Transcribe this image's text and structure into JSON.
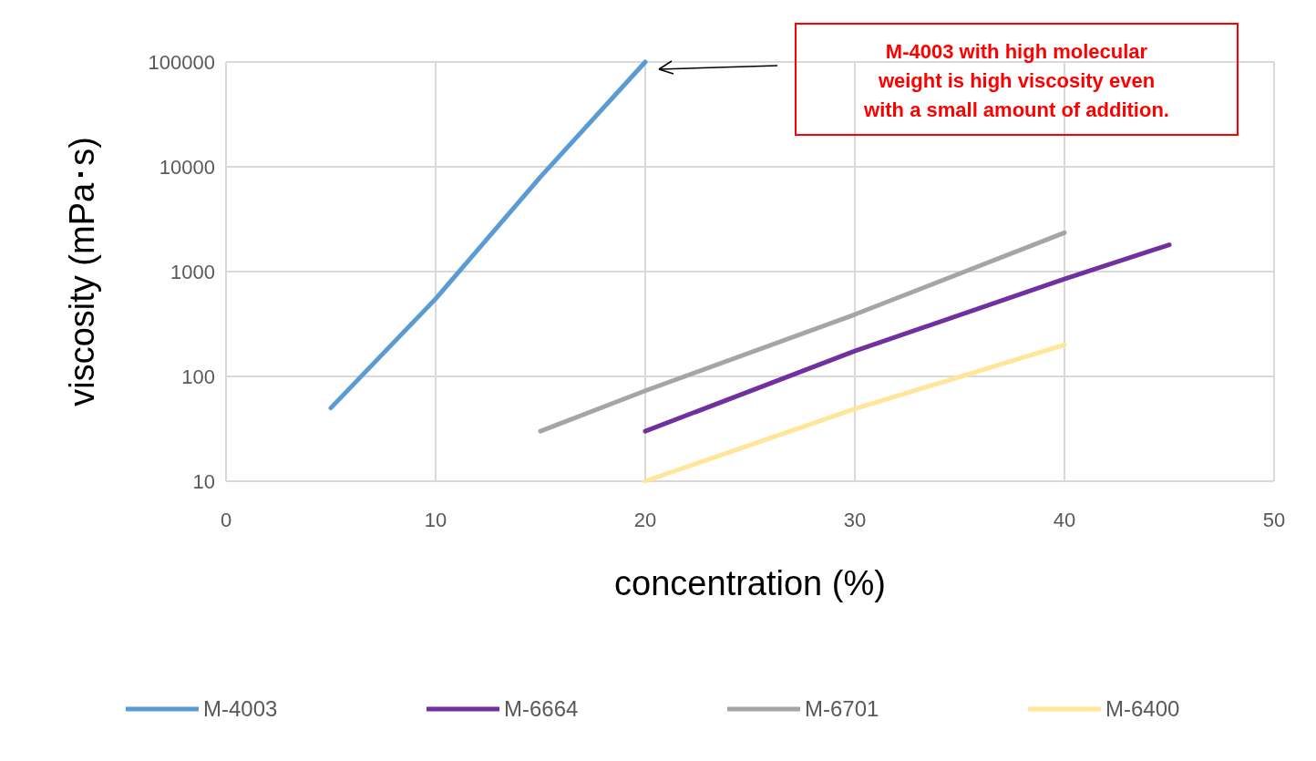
{
  "chart_data": {
    "type": "line",
    "xlabel": "concentration (%)",
    "ylabel": "viscosity (mPa･s)",
    "xlim": [
      0,
      50
    ],
    "xticks": [
      0,
      10,
      20,
      30,
      40,
      50
    ],
    "ylim": [
      10,
      100000
    ],
    "yticks": [
      10,
      100,
      1000,
      10000,
      100000
    ],
    "log": "y",
    "grid": true,
    "legend": "bottom",
    "marker": "none",
    "line_style": "solid",
    "series": [
      {
        "name": "M-4003",
        "color": "#5b9bd5",
        "x": [
          5,
          10,
          15,
          20
        ],
        "values": [
          50,
          550,
          8000,
          100000
        ]
      },
      {
        "name": "M-6664",
        "color": "#7030a0",
        "x": [
          20,
          30,
          40,
          45
        ],
        "values": [
          30,
          175,
          850,
          1800
        ]
      },
      {
        "name": "M-6701",
        "color": "#a5a5a5",
        "x": [
          15,
          20,
          30,
          40
        ],
        "values": [
          30,
          73,
          390,
          2350
        ]
      },
      {
        "name": "M-6400",
        "color": "#ffe699",
        "x": [
          20,
          30,
          40
        ],
        "values": [
          10,
          49,
          200
        ]
      }
    ],
    "annotations": [
      "M-4003 with high molecular weight is high viscosity even with a small amount of addition."
    ]
  }
}
